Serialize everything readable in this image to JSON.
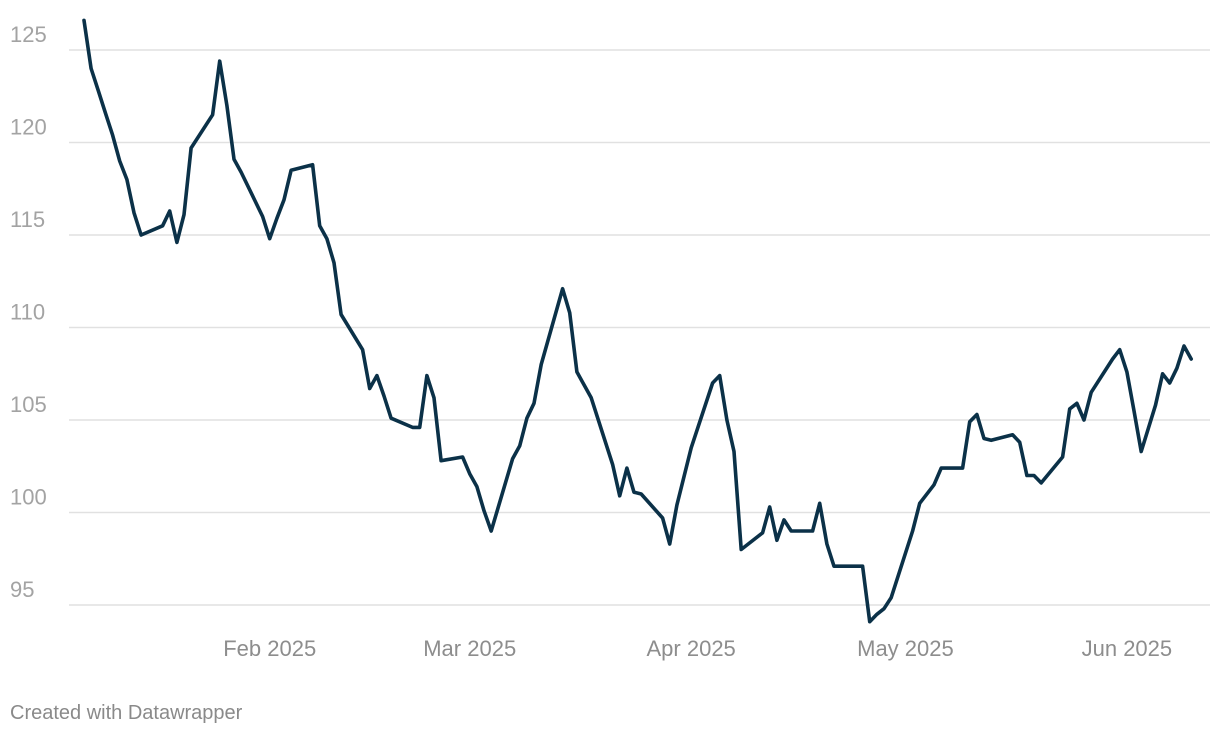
{
  "chart_data": {
    "type": "line",
    "title": "",
    "xlabel": "",
    "ylabel": "",
    "x_start": "2025-01-05",
    "x_end": "2025-06-05",
    "ylim": [
      93.5,
      126.5
    ],
    "grid": true,
    "y_ticks": [
      95,
      100,
      105,
      110,
      115,
      120,
      125
    ],
    "y_tick_labels": [
      "95",
      "100",
      "105",
      "110",
      "115",
      "120",
      "125"
    ],
    "x_ticks": [
      {
        "date": "2025-02-01",
        "label": "Feb 2025"
      },
      {
        "date": "2025-03-01",
        "label": "Mar 2025"
      },
      {
        "date": "2025-04-01",
        "label": "Apr 2025"
      },
      {
        "date": "2025-05-01",
        "label": "May 2025"
      },
      {
        "date": "2025-06-01",
        "label": "Jun 2025"
      }
    ],
    "line_color": "#0b3148",
    "series": [
      {
        "points": [
          [
            "2025-01-06",
            126.6
          ],
          [
            "2025-01-07",
            124.0
          ],
          [
            "2025-01-08",
            122.8
          ],
          [
            "2025-01-09",
            121.6
          ],
          [
            "2025-01-10",
            120.4
          ],
          [
            "2025-01-11",
            119.0
          ],
          [
            "2025-01-12",
            118.0
          ],
          [
            "2025-01-13",
            116.2
          ],
          [
            "2025-01-14",
            115.0
          ],
          [
            "2025-01-17",
            115.5
          ],
          [
            "2025-01-18",
            116.3
          ],
          [
            "2025-01-19",
            114.6
          ],
          [
            "2025-01-20",
            116.1
          ],
          [
            "2025-01-21",
            119.7
          ],
          [
            "2025-01-24",
            121.5
          ],
          [
            "2025-01-25",
            124.4
          ],
          [
            "2025-01-26",
            122.0
          ],
          [
            "2025-01-27",
            119.1
          ],
          [
            "2025-01-28",
            118.4
          ],
          [
            "2025-01-31",
            116.0
          ],
          [
            "2025-02-01",
            114.8
          ],
          [
            "2025-02-02",
            115.9
          ],
          [
            "2025-02-03",
            116.9
          ],
          [
            "2025-02-04",
            118.5
          ],
          [
            "2025-02-07",
            118.8
          ],
          [
            "2025-02-08",
            115.5
          ],
          [
            "2025-02-09",
            114.8
          ],
          [
            "2025-02-10",
            113.5
          ],
          [
            "2025-02-11",
            110.7
          ],
          [
            "2025-02-14",
            108.8
          ],
          [
            "2025-02-15",
            106.7
          ],
          [
            "2025-02-16",
            107.4
          ],
          [
            "2025-02-17",
            106.3
          ],
          [
            "2025-02-18",
            105.1
          ],
          [
            "2025-02-21",
            104.6
          ],
          [
            "2025-02-22",
            104.6
          ],
          [
            "2025-02-23",
            107.4
          ],
          [
            "2025-02-24",
            106.2
          ],
          [
            "2025-02-25",
            102.8
          ],
          [
            "2025-02-28",
            103.0
          ],
          [
            "2025-03-01",
            102.1
          ],
          [
            "2025-03-02",
            101.4
          ],
          [
            "2025-03-03",
            100.1
          ],
          [
            "2025-03-04",
            99.0
          ],
          [
            "2025-03-07",
            102.9
          ],
          [
            "2025-03-08",
            103.6
          ],
          [
            "2025-03-09",
            105.1
          ],
          [
            "2025-03-10",
            105.9
          ],
          [
            "2025-03-11",
            108.0
          ],
          [
            "2025-03-14",
            112.1
          ],
          [
            "2025-03-15",
            110.8
          ],
          [
            "2025-03-16",
            107.6
          ],
          [
            "2025-03-17",
            106.9
          ],
          [
            "2025-03-18",
            106.2
          ],
          [
            "2025-03-21",
            102.6
          ],
          [
            "2025-03-22",
            100.9
          ],
          [
            "2025-03-23",
            102.4
          ],
          [
            "2025-03-24",
            101.1
          ],
          [
            "2025-03-25",
            101.0
          ],
          [
            "2025-03-28",
            99.7
          ],
          [
            "2025-03-29",
            98.3
          ],
          [
            "2025-03-30",
            100.4
          ],
          [
            "2025-04-01",
            103.5
          ],
          [
            "2025-04-04",
            107.0
          ],
          [
            "2025-04-05",
            107.4
          ],
          [
            "2025-04-06",
            105.0
          ],
          [
            "2025-04-07",
            103.3
          ],
          [
            "2025-04-08",
            98.0
          ],
          [
            "2025-04-11",
            98.9
          ],
          [
            "2025-04-12",
            100.3
          ],
          [
            "2025-04-13",
            98.5
          ],
          [
            "2025-04-14",
            99.6
          ],
          [
            "2025-04-15",
            99.0
          ],
          [
            "2025-04-18",
            99.0
          ],
          [
            "2025-04-19",
            100.5
          ],
          [
            "2025-04-20",
            98.3
          ],
          [
            "2025-04-21",
            97.1
          ],
          [
            "2025-04-25",
            97.1
          ],
          [
            "2025-04-26",
            94.1
          ],
          [
            "2025-04-27",
            94.5
          ],
          [
            "2025-04-28",
            94.8
          ],
          [
            "2025-04-29",
            95.4
          ],
          [
            "2025-05-02",
            99.0
          ],
          [
            "2025-05-03",
            100.5
          ],
          [
            "2025-05-05",
            101.5
          ],
          [
            "2025-05-06",
            102.4
          ],
          [
            "2025-05-09",
            102.4
          ],
          [
            "2025-05-10",
            104.9
          ],
          [
            "2025-05-11",
            105.3
          ],
          [
            "2025-05-12",
            104.0
          ],
          [
            "2025-05-13",
            103.9
          ],
          [
            "2025-05-16",
            104.2
          ],
          [
            "2025-05-17",
            103.8
          ],
          [
            "2025-05-18",
            102.0
          ],
          [
            "2025-05-19",
            102.0
          ],
          [
            "2025-05-20",
            101.6
          ],
          [
            "2025-05-23",
            103.0
          ],
          [
            "2025-05-24",
            105.6
          ],
          [
            "2025-05-25",
            105.9
          ],
          [
            "2025-05-26",
            105.0
          ],
          [
            "2025-05-27",
            106.5
          ],
          [
            "2025-05-30",
            108.3
          ],
          [
            "2025-05-31",
            108.8
          ],
          [
            "2025-06-01",
            107.6
          ],
          [
            "2025-06-02",
            105.5
          ],
          [
            "2025-06-03",
            103.3
          ],
          [
            "2025-06-05",
            105.8
          ],
          [
            "2025-06-06",
            107.5
          ],
          [
            "2025-06-07",
            107.0
          ],
          [
            "2025-06-08",
            107.8
          ],
          [
            "2025-06-09",
            109.0
          ],
          [
            "2025-06-10",
            108.3
          ]
        ]
      }
    ]
  },
  "footer": {
    "credit": "Created with Datawrapper"
  }
}
